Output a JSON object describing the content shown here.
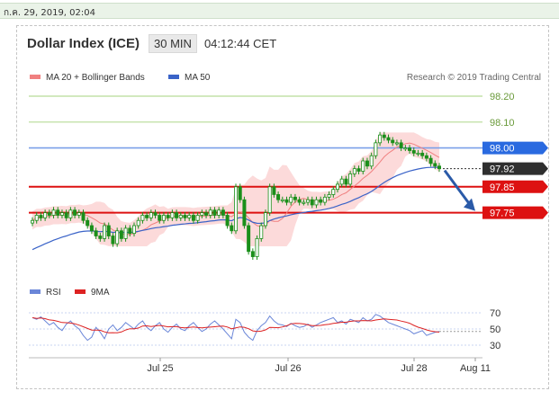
{
  "timestamp": "ก.ค. 29, 2019, 02:04",
  "header": {
    "title": "Dollar Index (ICE)",
    "interval": "30 MIN",
    "time": "04:12:44 CET"
  },
  "legend": {
    "ma20_label": "MA 20 + Bollinger Bands",
    "ma50_label": "MA 50",
    "credit": "Research © 2019 Trading Central"
  },
  "rsi_legend": {
    "rsi_label": "RSI",
    "ma_label": "9MA"
  },
  "colors": {
    "candle": "#1a8f1a",
    "bollinger_fill": "#fbd4d4",
    "ma20": "#f08080",
    "ma50": "#3a63c8",
    "resistance_green": "#b6dc96",
    "pivot_blue": "#7aa0e8",
    "support_red": "#dd1111",
    "arrow": "#2a5aa8",
    "rsi": "#6a86d8",
    "rsi_ma": "#dd2222"
  },
  "chart_data": [
    {
      "type": "candlestick",
      "title": "Dollar Index (ICE)",
      "interval": "30 MIN",
      "x_tick_labels": [
        "Jul 25",
        "Jul 26",
        "Jul 28",
        "Aug 11"
      ],
      "ylim": [
        97.5,
        98.25
      ],
      "levels": [
        {
          "value": 98.2,
          "label": "98.20",
          "style": "resistance"
        },
        {
          "value": 98.1,
          "label": "98.10",
          "style": "resistance"
        },
        {
          "value": 98.0,
          "label": "98.00",
          "style": "pivot"
        },
        {
          "value": 97.92,
          "label": "97.92",
          "style": "last"
        },
        {
          "value": 97.85,
          "label": "97.85",
          "style": "support"
        },
        {
          "value": 97.75,
          "label": "97.75",
          "style": "support"
        }
      ],
      "closes": [
        97.72,
        97.74,
        97.73,
        97.75,
        97.74,
        97.76,
        97.74,
        97.75,
        97.73,
        97.76,
        97.74,
        97.75,
        97.72,
        97.7,
        97.68,
        97.66,
        97.65,
        97.7,
        97.66,
        97.63,
        97.68,
        97.65,
        97.69,
        97.67,
        97.7,
        97.72,
        97.74,
        97.73,
        97.75,
        97.74,
        97.72,
        97.74,
        97.73,
        97.75,
        97.73,
        97.74,
        97.73,
        97.74,
        97.72,
        97.74,
        97.75,
        97.74,
        97.76,
        97.74,
        97.76,
        97.74,
        97.7,
        97.68,
        97.85,
        97.8,
        97.7,
        97.6,
        97.58,
        97.65,
        97.7,
        97.75,
        97.85,
        97.82,
        97.8,
        97.8,
        97.79,
        97.81,
        97.8,
        97.79,
        97.79,
        97.8,
        97.78,
        97.8,
        97.79,
        97.81,
        97.82,
        97.84,
        97.86,
        97.88,
        97.86,
        97.9,
        97.92,
        97.91,
        97.95,
        97.93,
        97.97,
        98.02,
        98.05,
        98.04,
        98.03,
        98.02,
        98.02,
        98.0,
        98.0,
        97.99,
        97.98,
        97.98,
        97.97,
        97.96,
        97.94,
        97.93,
        97.92
      ],
      "bollinger_band": {
        "ma20_start": 97.71,
        "ma20_end": 97.98,
        "upper_max": 98.06,
        "lower_min": 97.62
      },
      "ma50_range": [
        97.6,
        97.93
      ],
      "forecast_arrow": {
        "from": 97.92,
        "to": 97.75
      }
    },
    {
      "type": "line",
      "title": "RSI",
      "series": [
        {
          "name": "RSI"
        },
        {
          "name": "9MA"
        }
      ],
      "y_ticks": [
        70,
        50,
        30
      ],
      "rsi": [
        64,
        62,
        65,
        60,
        55,
        58,
        52,
        48,
        56,
        60,
        54,
        50,
        42,
        36,
        40,
        52,
        46,
        38,
        50,
        55,
        48,
        52,
        58,
        54,
        50,
        56,
        60,
        52,
        48,
        54,
        58,
        50,
        46,
        52,
        56,
        50,
        48,
        54,
        58,
        52,
        47,
        50,
        56,
        60,
        55,
        50,
        44,
        38,
        62,
        58,
        46,
        40,
        36,
        48,
        54,
        58,
        66,
        60,
        56,
        55,
        53,
        57,
        54,
        52,
        53,
        56,
        52,
        55,
        58,
        60,
        62,
        64,
        58,
        60,
        56,
        62,
        60,
        58,
        64,
        60,
        62,
        68,
        66,
        62,
        58,
        56,
        54,
        52,
        50,
        48,
        44,
        46,
        48,
        42,
        44,
        46,
        47
      ],
      "ma9_range": [
        48,
        66
      ]
    }
  ]
}
